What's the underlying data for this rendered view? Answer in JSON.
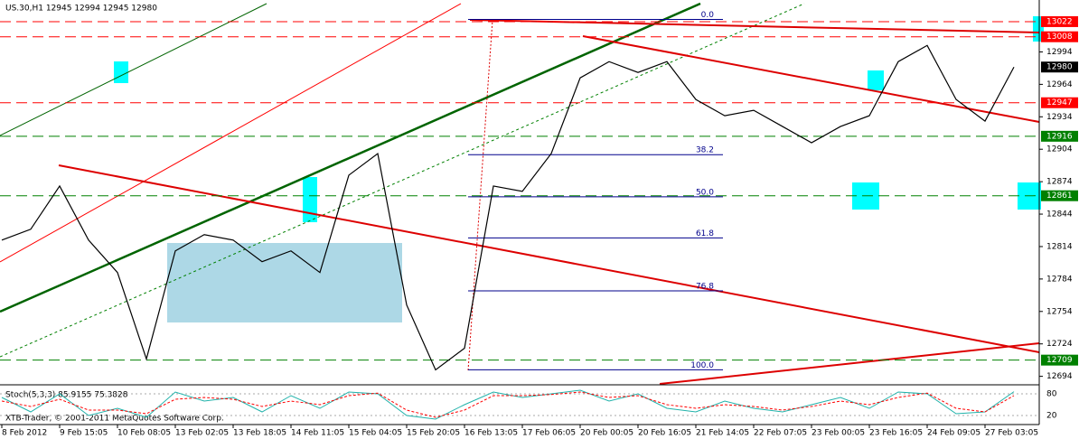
{
  "chart_data": {
    "type": "line",
    "title": "US.30,H1  12945 12994 12945 12980",
    "copyright": "XTB-Trader, © 2001-2011 MetaQuotes Software Corp.",
    "categories": [
      "8 Feb 2012",
      null,
      "9 Feb 15:05",
      null,
      "10 Feb 08:05",
      null,
      "13 Feb 02:05",
      null,
      "13 Feb 18:05",
      null,
      "14 Feb 11:05",
      null,
      "15 Feb 04:05",
      null,
      "15 Feb 20:05",
      null,
      "16 Feb 13:05",
      null,
      "17 Feb 06:05",
      null,
      "20 Feb 00:05",
      null,
      "20 Feb 16:05",
      null,
      "21 Feb 14:05",
      null,
      "22 Feb 07:05",
      null,
      "23 Feb 00:05",
      null,
      "23 Feb 16:05",
      null,
      "24 Feb 09:05",
      null,
      "27 Feb 03:05",
      null
    ],
    "series": [
      {
        "name": "US.30",
        "color": "#000000",
        "values": [
          12820,
          12830,
          12870,
          12820,
          12790,
          12710,
          12810,
          12825,
          12820,
          12800,
          12810,
          12790,
          12880,
          12900,
          12760,
          12700,
          12720,
          12870,
          12865,
          12900,
          12970,
          12985,
          12975,
          12985,
          12950,
          12935,
          12940,
          12925,
          12910,
          12925,
          12935,
          12985,
          13000,
          12950,
          12930,
          12980
        ]
      }
    ],
    "ylim": [
      12687,
      13042
    ],
    "yticks": [
      12994,
      12964,
      12934,
      12904,
      12874,
      12844,
      12814,
      12784,
      12754,
      12724,
      12694
    ],
    "levels": [
      {
        "value": 13022,
        "label": "13022",
        "color": "#ff0000"
      },
      {
        "value": 13008,
        "label": "13008",
        "color": "#ff0000"
      },
      {
        "value": 12980,
        "label": "12980",
        "color": "#000000"
      },
      {
        "value": 12947,
        "label": "12947",
        "color": "#ff0000"
      },
      {
        "value": 12916,
        "label": "12916",
        "color": "#008000"
      },
      {
        "value": 12861,
        "label": "12861",
        "color": "#008000"
      },
      {
        "value": 12709,
        "label": "12709",
        "color": "#008000"
      }
    ],
    "fibonacci": [
      {
        "label": "0.0",
        "price": 13024
      },
      {
        "label": "38.2",
        "price": 12899
      },
      {
        "label": "50.0",
        "price": 12860
      },
      {
        "label": "61.8",
        "price": 12822
      },
      {
        "label": "76.8",
        "price": 12773
      },
      {
        "label": "100.0",
        "price": 12700
      }
    ],
    "stochastic": {
      "label": "Stoch(5,3,3) 85.9155 75.3828",
      "ylim": [
        0,
        100
      ],
      "yticks": [
        80,
        20
      ],
      "series": [
        {
          "name": "main",
          "color": "#20b2aa",
          "values": [
            70,
            30,
            80,
            20,
            40,
            15,
            85,
            60,
            70,
            30,
            75,
            40,
            85,
            80,
            20,
            10,
            50,
            85,
            70,
            80,
            90,
            60,
            80,
            40,
            30,
            60,
            40,
            30,
            50,
            70,
            40,
            85,
            80,
            25,
            30,
            86
          ]
        },
        {
          "name": "signal",
          "color": "#ff0000",
          "values": [
            60,
            45,
            65,
            35,
            35,
            25,
            65,
            70,
            65,
            45,
            60,
            50,
            75,
            82,
            35,
            15,
            35,
            75,
            75,
            78,
            85,
            70,
            75,
            50,
            40,
            50,
            45,
            35,
            45,
            60,
            50,
            70,
            82,
            40,
            30,
            75
          ]
        }
      ]
    }
  }
}
